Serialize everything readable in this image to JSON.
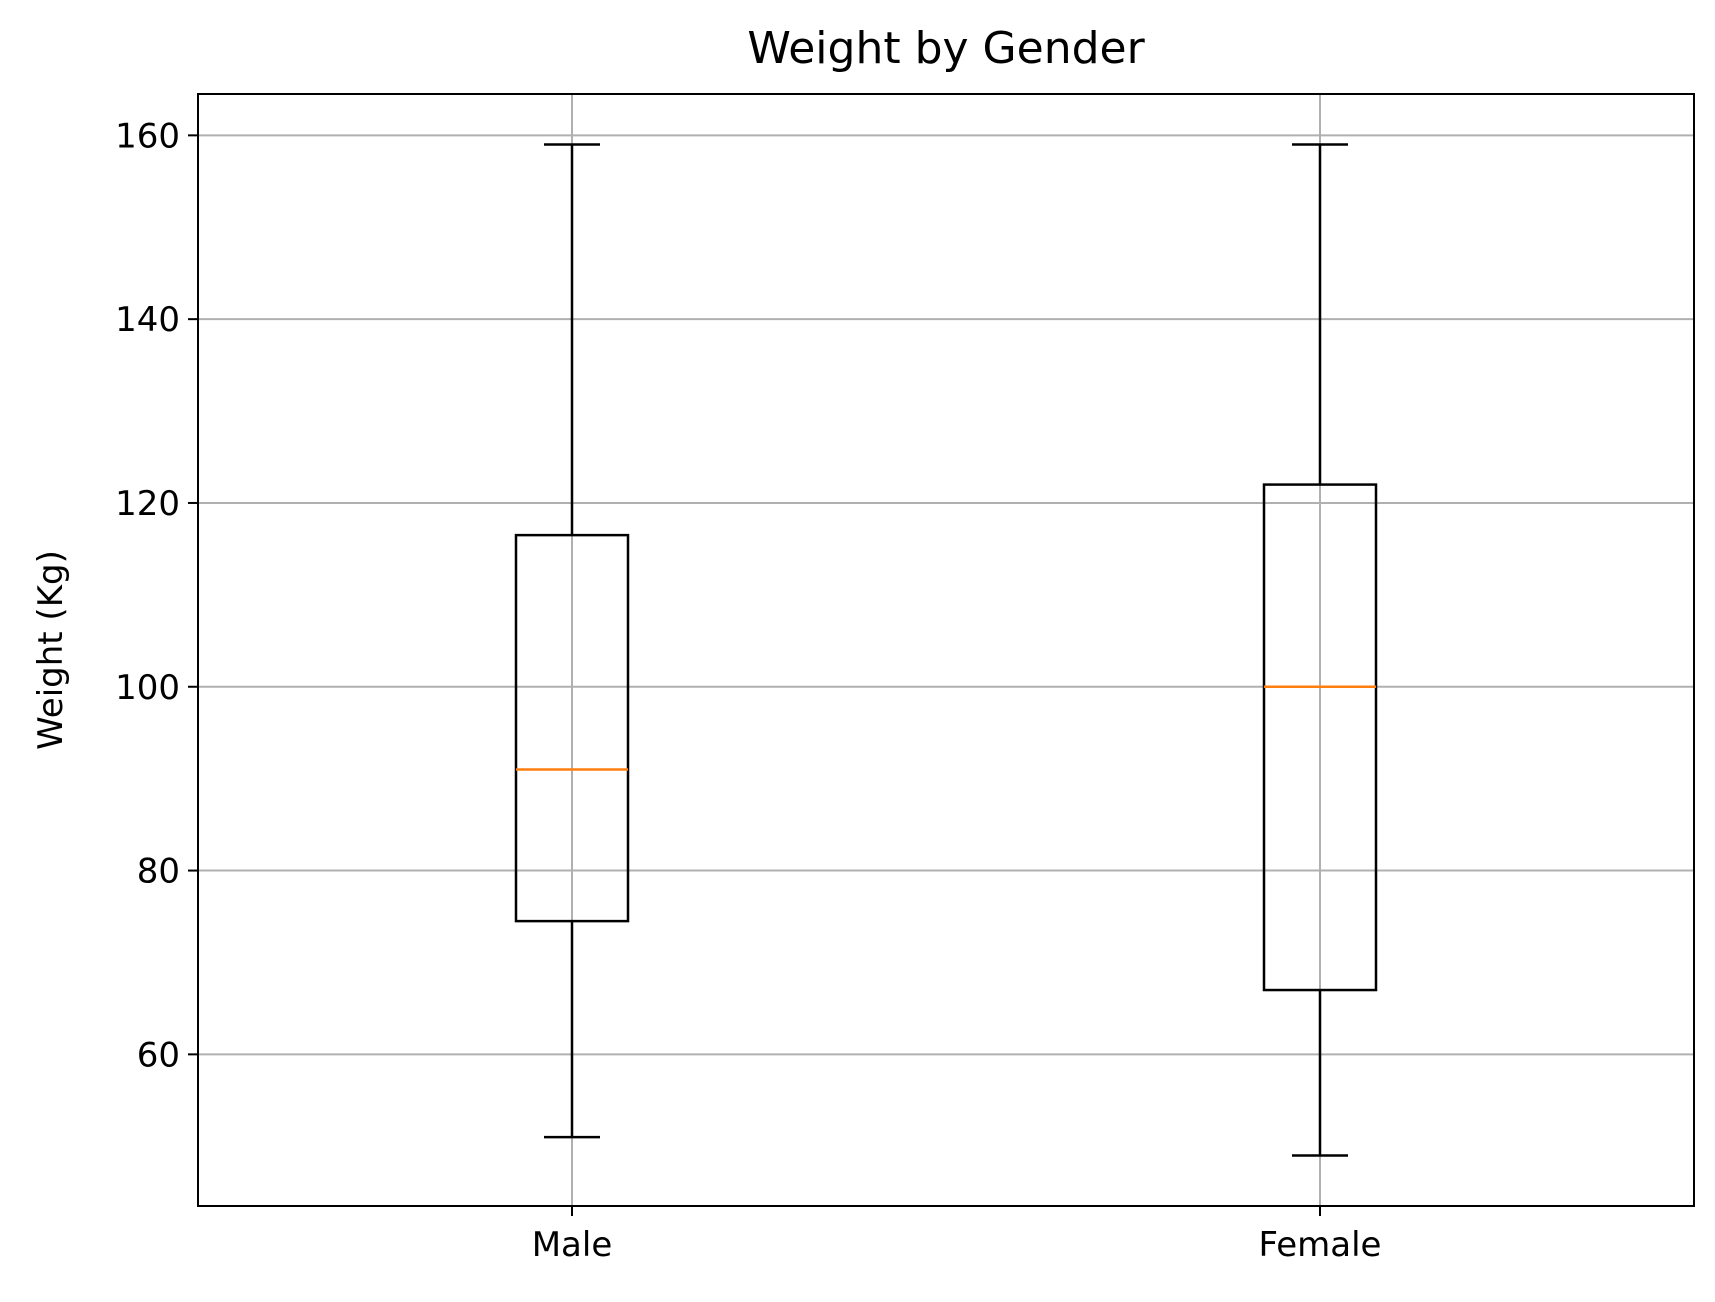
{
  "chart_data": {
    "type": "box",
    "title": "Weight by Gender",
    "xlabel": "",
    "ylabel": "Weight (Kg)",
    "categories": [
      "Male",
      "Female"
    ],
    "boxes": [
      {
        "category": "Male",
        "whisker_low": 51,
        "q1": 74.5,
        "median": 91,
        "q3": 116.5,
        "whisker_high": 159
      },
      {
        "category": "Female",
        "whisker_low": 49,
        "q1": 67,
        "median": 100,
        "q3": 122,
        "whisker_high": 159
      }
    ],
    "ylim": [
      43.5,
      164.5
    ],
    "yticks": [
      60,
      80,
      100,
      120,
      140,
      160
    ],
    "grid": true,
    "colors": {
      "box": "#000000",
      "median": "#ff7f0e",
      "grid": "#b0b0b0",
      "axes": "#000000"
    }
  }
}
